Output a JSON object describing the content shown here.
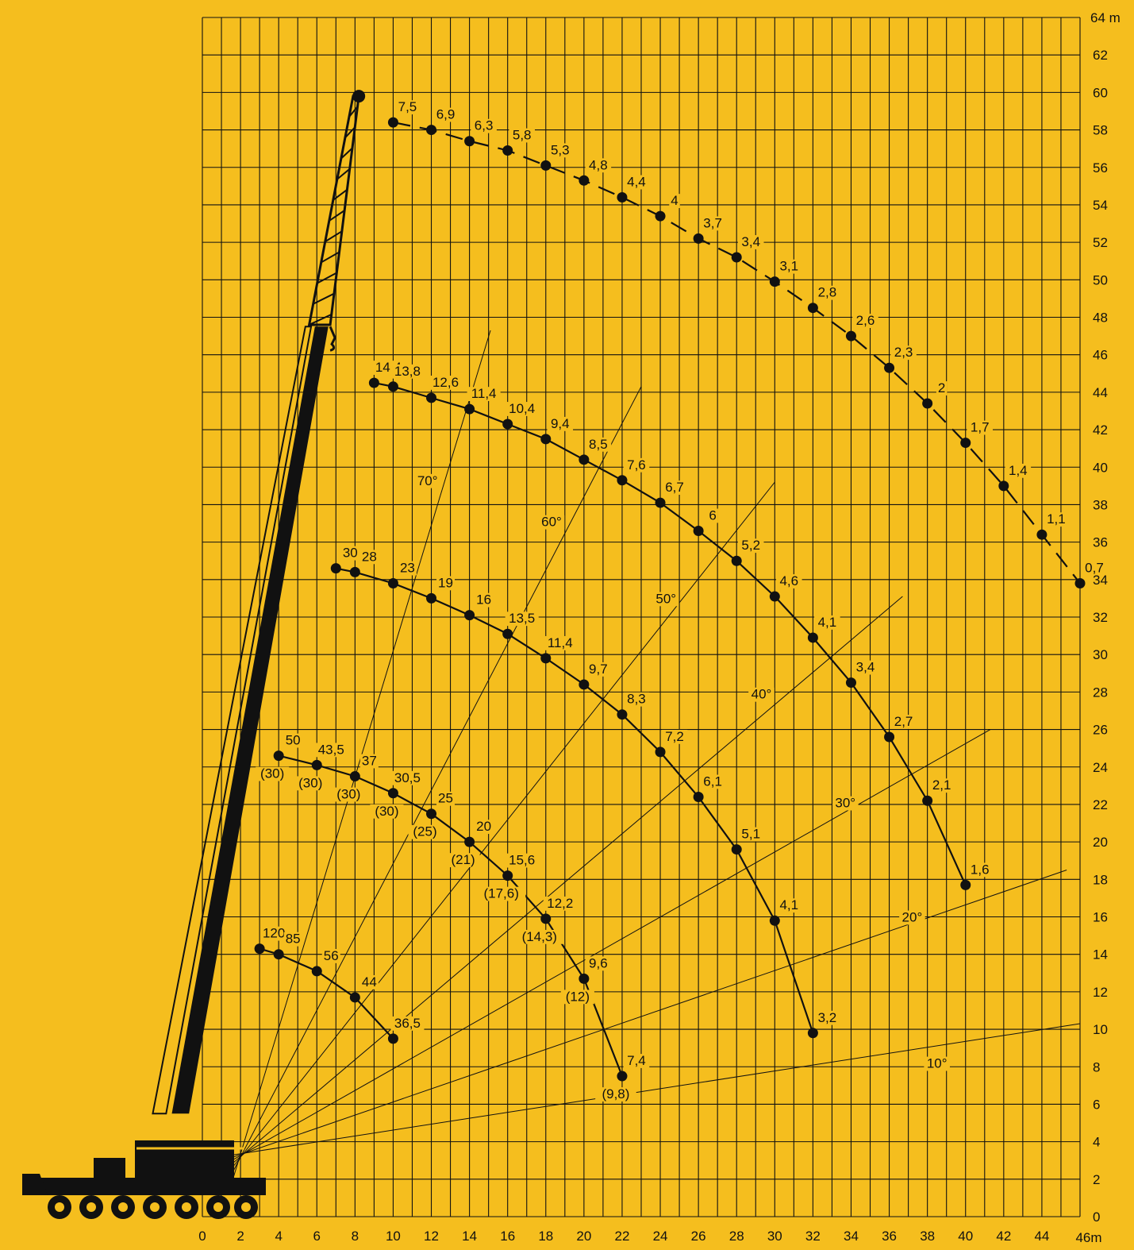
{
  "colors": {
    "background": "#F5BE1E",
    "ink": "#111111"
  },
  "chart_data": {
    "type": "line",
    "title": "",
    "xlabel": "",
    "ylabel": "",
    "x_unit_label": "46m",
    "y_unit_label": "64 m",
    "xlim": [
      0,
      46
    ],
    "ylim": [
      0,
      64
    ],
    "x_ticks": [
      0,
      2,
      4,
      6,
      8,
      10,
      12,
      14,
      16,
      18,
      20,
      22,
      24,
      26,
      28,
      30,
      32,
      34,
      36,
      38,
      40,
      42,
      44
    ],
    "y_ticks": [
      0,
      2,
      4,
      6,
      8,
      10,
      12,
      14,
      16,
      18,
      20,
      22,
      24,
      26,
      28,
      30,
      32,
      34,
      36,
      38,
      40,
      42,
      44,
      46,
      48,
      50,
      52,
      54,
      56,
      58,
      60,
      62
    ],
    "grid": true,
    "crane_illustration": "mobile-crane-icon",
    "angle_lines": [
      {
        "label": "10°",
        "angle": 10,
        "end": [
          46,
          10.3
        ],
        "label_pos": [
          38.5,
          8.2
        ]
      },
      {
        "label": "20°",
        "angle": 20,
        "end": [
          45.3,
          18.5
        ],
        "label_pos": [
          37.2,
          16.0
        ]
      },
      {
        "label": "30°",
        "angle": 30,
        "end": [
          41.3,
          26.0
        ],
        "label_pos": [
          33.7,
          22.1
        ]
      },
      {
        "label": "40°",
        "angle": 40,
        "end": [
          36.7,
          33.1
        ],
        "label_pos": [
          29.3,
          27.9
        ]
      },
      {
        "label": "50°",
        "angle": 50,
        "end": [
          30.0,
          39.2
        ],
        "label_pos": [
          24.3,
          33.0
        ]
      },
      {
        "label": "60°",
        "angle": 60,
        "end": [
          23.0,
          44.3
        ],
        "label_pos": [
          18.3,
          37.1
        ]
      },
      {
        "label": "70°",
        "angle": 70,
        "end": [
          15.1,
          47.3
        ],
        "label_pos": [
          11.8,
          39.3
        ]
      }
    ],
    "series": [
      {
        "dashed": true,
        "points": [
          [
            10,
            58.4
          ],
          [
            12,
            58.0
          ],
          [
            14,
            57.4
          ],
          [
            16,
            56.9
          ],
          [
            18,
            56.1
          ],
          [
            20,
            55.3
          ],
          [
            22,
            54.4
          ],
          [
            24,
            53.4
          ],
          [
            26,
            52.2
          ],
          [
            28,
            51.2
          ],
          [
            30,
            49.9
          ],
          [
            32,
            48.5
          ],
          [
            34,
            47.0
          ],
          [
            36,
            45.3
          ],
          [
            38,
            43.4
          ],
          [
            40,
            41.3
          ],
          [
            42,
            39.0
          ],
          [
            44,
            36.4
          ],
          [
            46,
            33.8
          ]
        ],
        "labels": [
          "7,5",
          "6,9",
          "6,3",
          "5,8",
          "5,3",
          "4,8",
          "4,4",
          "4",
          "3,7",
          "3,4",
          "3,1",
          "2,8",
          "2,6",
          "2,3",
          "2",
          "1,7",
          "1,4",
          "1,1",
          "0,7"
        ]
      },
      {
        "dashed": false,
        "points": [
          [
            9,
            44.5
          ],
          [
            10,
            44.3
          ],
          [
            12,
            43.7
          ],
          [
            14,
            43.1
          ],
          [
            16,
            42.3
          ],
          [
            18,
            41.5
          ],
          [
            20,
            40.4
          ],
          [
            22,
            39.3
          ],
          [
            24,
            38.1
          ],
          [
            26,
            36.6
          ],
          [
            28,
            35.0
          ],
          [
            30,
            33.1
          ],
          [
            32,
            30.9
          ],
          [
            34,
            28.5
          ],
          [
            36,
            25.6
          ],
          [
            38,
            22.2
          ],
          [
            40,
            17.7
          ]
        ],
        "labels": [
          "14,4",
          "13,8",
          "12,6",
          "11,4",
          "10,4",
          "9,4",
          "8,5",
          "7,6",
          "6,7",
          "6",
          "5,2",
          "4,6",
          "4,1",
          "3,4",
          "2,7",
          "2,1",
          "1,6"
        ]
      },
      {
        "dashed": false,
        "points": [
          [
            7,
            34.6
          ],
          [
            8,
            34.4
          ],
          [
            10,
            33.8
          ],
          [
            12,
            33.0
          ],
          [
            14,
            32.1
          ],
          [
            16,
            31.1
          ],
          [
            18,
            29.8
          ],
          [
            20,
            28.4
          ],
          [
            22,
            26.8
          ],
          [
            24,
            24.8
          ],
          [
            26,
            22.4
          ],
          [
            28,
            19.6
          ],
          [
            30,
            15.8
          ],
          [
            32,
            9.8
          ]
        ],
        "labels": [
          "30",
          "28",
          "23",
          "19",
          "16",
          "13,5",
          "11,4",
          "9,7",
          "8,3",
          "7,2",
          "6,1",
          "5,1",
          "4,1",
          "3,2"
        ]
      },
      {
        "dashed": false,
        "points": [
          [
            4,
            24.6
          ],
          [
            6,
            24.1
          ],
          [
            8,
            23.5
          ],
          [
            10,
            22.6
          ],
          [
            12,
            21.5
          ],
          [
            14,
            20.0
          ],
          [
            16,
            18.2
          ],
          [
            18,
            15.9
          ],
          [
            20,
            12.7
          ],
          [
            22,
            7.5
          ]
        ],
        "labels": [
          "50",
          "43,5",
          "37",
          "30,5",
          "25",
          "20",
          "15,6",
          "12,2",
          "9,6",
          "7,4"
        ],
        "secondary_labels": [
          "(30)",
          "(30)",
          "(30)",
          "(30)",
          "(25)",
          "(21)",
          "(17,6)",
          "(14,3)",
          "(12)",
          "(9,8)"
        ]
      },
      {
        "dashed": false,
        "points": [
          [
            3,
            14.3
          ],
          [
            4,
            14.0
          ],
          [
            6,
            13.1
          ],
          [
            8,
            11.7
          ],
          [
            10,
            9.5
          ]
        ],
        "labels": [
          "120",
          "85",
          "56",
          "44",
          "36,5"
        ]
      }
    ]
  }
}
